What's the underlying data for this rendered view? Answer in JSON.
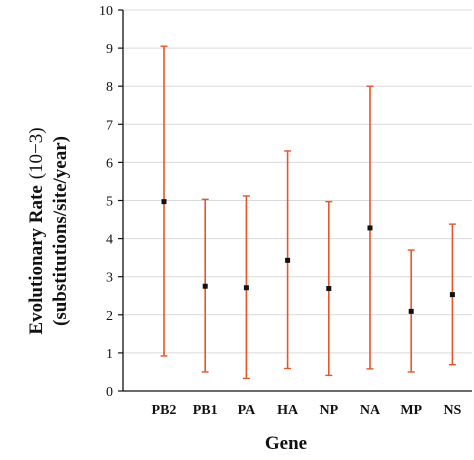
{
  "chart_data": {
    "type": "scatter",
    "xlabel": "Gene",
    "ylabel_line1": "Evolutionary Rate",
    "ylabel_unit": "(10−3)",
    "ylabel_line2": "(substitutions/site/year)",
    "categories": [
      "PB2",
      "PB1",
      "PA",
      "HA",
      "NP",
      "NA",
      "MP",
      "NS"
    ],
    "values": [
      4.97,
      2.75,
      2.71,
      3.43,
      2.69,
      4.28,
      2.09,
      2.53
    ],
    "lower": [
      0.92,
      0.5,
      0.33,
      0.59,
      0.41,
      0.58,
      0.5,
      0.69
    ],
    "upper": [
      9.05,
      5.03,
      5.12,
      6.3,
      4.97,
      8.0,
      3.7,
      4.38
    ],
    "ylim": [
      0,
      10
    ],
    "yticks": [
      "0",
      "1",
      "2",
      "3",
      "4",
      "5",
      "6",
      "7",
      "8",
      "9",
      "10"
    ],
    "grid": "horizontal",
    "colors": {
      "errorbar": "#e8552a",
      "marker": "#111111",
      "grid": "#d9d9d9"
    }
  }
}
